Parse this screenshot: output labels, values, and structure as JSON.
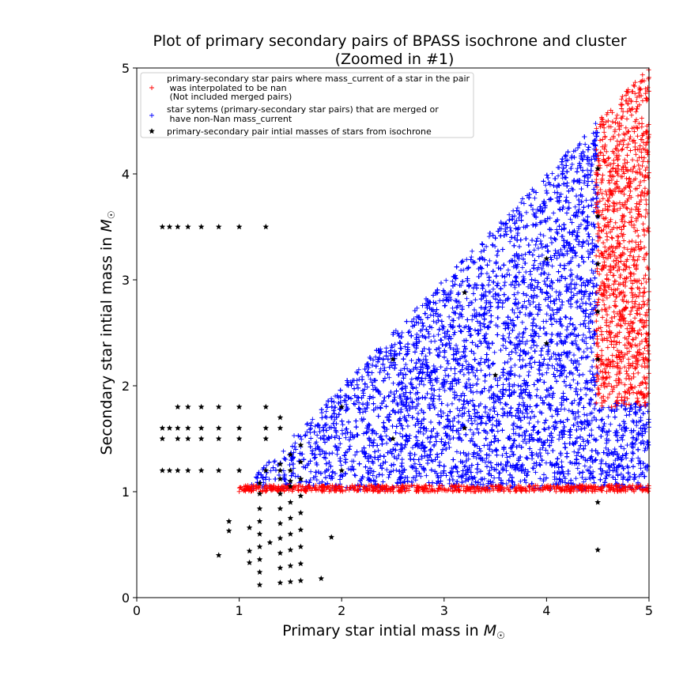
{
  "chart_data": {
    "type": "scatter",
    "title_line1": "Plot of primary secondary pairs of BPASS isochrone and cluster",
    "title_line2": "(Zoomed in #1)",
    "xlabel": "Primary star intial mass in",
    "ylabel": "Secondary star intial mass in",
    "unit_symbol": "M",
    "xlim": [
      0,
      5
    ],
    "ylim": [
      0,
      5
    ],
    "xticks": [
      "0",
      "1",
      "2",
      "3",
      "4",
      "5"
    ],
    "yticks": [
      "0",
      "1",
      "2",
      "3",
      "4",
      "5"
    ],
    "legend_placement": "upper-left",
    "series": [
      {
        "name_lines": [
          "primary-secondary star pairs where mass_current of a star in the pair",
          " was interpolated to be nan",
          " (Not included merged pairs)"
        ],
        "marker": "plus",
        "color": "#ff0000",
        "description_of_region": "dense band along y≈1.0 for x 1.0–5.0, and dense region x 4.5–5.0 with y from 1.8 up to x",
        "approx_points": 1800
      },
      {
        "name_lines": [
          "star sytems (primary-secondary star pairs) that are merged or",
          " have non-Nan mass_current"
        ],
        "marker": "plus",
        "color": "#0000ff",
        "description_of_region": "triangle region with x from 1.0 to 5.0 and y between 1.0 and x (x up to 4.5 for upper parts)",
        "approx_points": 9000
      },
      {
        "name_lines": [
          "primary-secondary pair intial masses of stars from isochrone"
        ],
        "marker": "star",
        "color": "#000000",
        "points": [
          [
            0.25,
            3.5
          ],
          [
            0.32,
            3.5
          ],
          [
            0.4,
            3.5
          ],
          [
            0.5,
            3.5
          ],
          [
            0.63,
            3.5
          ],
          [
            0.8,
            3.5
          ],
          [
            1.0,
            3.5
          ],
          [
            1.26,
            3.5
          ],
          [
            0.4,
            1.8
          ],
          [
            0.5,
            1.8
          ],
          [
            0.63,
            1.8
          ],
          [
            0.8,
            1.8
          ],
          [
            1.0,
            1.8
          ],
          [
            1.26,
            1.8
          ],
          [
            0.25,
            1.6
          ],
          [
            0.32,
            1.6
          ],
          [
            0.4,
            1.6
          ],
          [
            0.5,
            1.6
          ],
          [
            0.63,
            1.6
          ],
          [
            0.8,
            1.6
          ],
          [
            1.0,
            1.6
          ],
          [
            1.26,
            1.6
          ],
          [
            1.4,
            1.6
          ],
          [
            0.25,
            1.5
          ],
          [
            0.4,
            1.5
          ],
          [
            0.5,
            1.5
          ],
          [
            0.63,
            1.5
          ],
          [
            0.8,
            1.5
          ],
          [
            1.0,
            1.5
          ],
          [
            1.26,
            1.5
          ],
          [
            0.25,
            1.2
          ],
          [
            0.32,
            1.2
          ],
          [
            0.4,
            1.2
          ],
          [
            0.5,
            1.2
          ],
          [
            0.63,
            1.2
          ],
          [
            0.8,
            1.2
          ],
          [
            1.0,
            1.2
          ],
          [
            1.26,
            1.2
          ],
          [
            1.4,
            1.7
          ],
          [
            1.4,
            1.26
          ],
          [
            1.4,
            1.2
          ],
          [
            1.4,
            1.12
          ],
          [
            1.5,
            1.35
          ],
          [
            1.5,
            1.2
          ],
          [
            1.5,
            1.1
          ],
          [
            1.6,
            1.44
          ],
          [
            1.6,
            1.28
          ],
          [
            1.6,
            1.12
          ],
          [
            1.2,
            1.08
          ],
          [
            1.2,
            0.98
          ],
          [
            1.2,
            0.84
          ],
          [
            1.2,
            0.72
          ],
          [
            1.2,
            0.6
          ],
          [
            1.2,
            0.48
          ],
          [
            1.2,
            0.36
          ],
          [
            1.2,
            0.24
          ],
          [
            1.2,
            0.12
          ],
          [
            0.9,
            0.72
          ],
          [
            0.9,
            0.63
          ],
          [
            1.1,
            0.66
          ],
          [
            1.1,
            0.44
          ],
          [
            1.1,
            0.33
          ],
          [
            1.3,
            0.52
          ],
          [
            0.8,
            0.4
          ],
          [
            1.4,
            0.98
          ],
          [
            1.4,
            0.84
          ],
          [
            1.4,
            0.7
          ],
          [
            1.4,
            0.56
          ],
          [
            1.4,
            0.42
          ],
          [
            1.4,
            0.28
          ],
          [
            1.4,
            0.14
          ],
          [
            1.5,
            1.05
          ],
          [
            1.5,
            0.9
          ],
          [
            1.5,
            0.75
          ],
          [
            1.5,
            0.6
          ],
          [
            1.5,
            0.45
          ],
          [
            1.5,
            0.3
          ],
          [
            1.5,
            0.15
          ],
          [
            1.6,
            1.12
          ],
          [
            1.6,
            0.96
          ],
          [
            1.6,
            0.8
          ],
          [
            1.6,
            0.64
          ],
          [
            1.6,
            0.48
          ],
          [
            1.6,
            0.32
          ],
          [
            1.6,
            0.16
          ],
          [
            1.8,
            0.18
          ],
          [
            1.9,
            0.57
          ],
          [
            4.5,
            0.9
          ],
          [
            4.5,
            0.45
          ],
          [
            4.5,
            4.05
          ],
          [
            4.5,
            3.6
          ],
          [
            4.5,
            3.15
          ],
          [
            4.5,
            2.7
          ],
          [
            4.5,
            2.25
          ],
          [
            3.2,
            1.6
          ],
          [
            3.2,
            2.88
          ],
          [
            2.5,
            1.5
          ],
          [
            2.5,
            2.25
          ],
          [
            2.0,
            1.8
          ],
          [
            2.0,
            1.2
          ],
          [
            3.5,
            2.1
          ],
          [
            4.0,
            2.4
          ],
          [
            4.0,
            3.2
          ]
        ]
      }
    ]
  }
}
